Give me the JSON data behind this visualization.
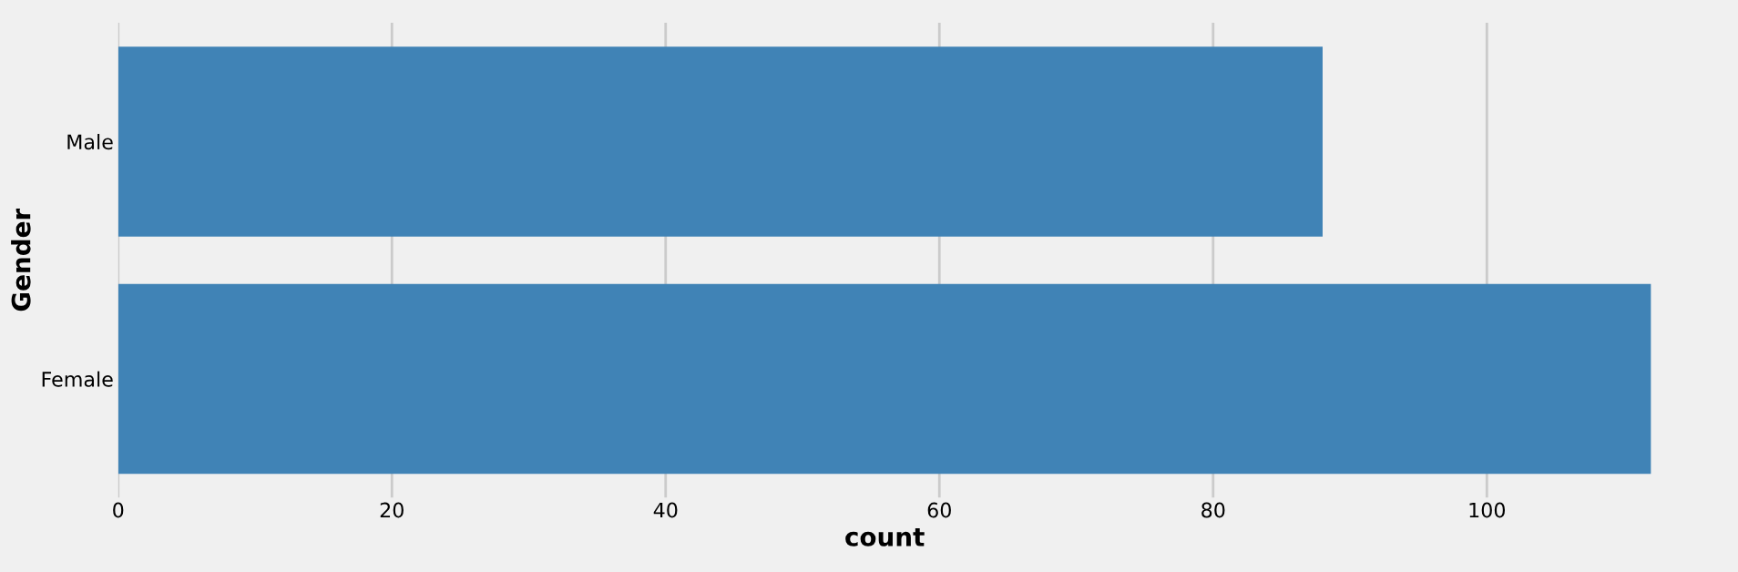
{
  "chart_data": {
    "type": "bar",
    "orientation": "horizontal",
    "categories": [
      "Male",
      "Female"
    ],
    "values": [
      88,
      112
    ],
    "color": "#4083b6",
    "xlabel": "count",
    "ylabel": "Gender",
    "xlim": [
      0,
      112
    ],
    "xticks": [
      0,
      20,
      40,
      60,
      80,
      100
    ],
    "grid": "x"
  }
}
